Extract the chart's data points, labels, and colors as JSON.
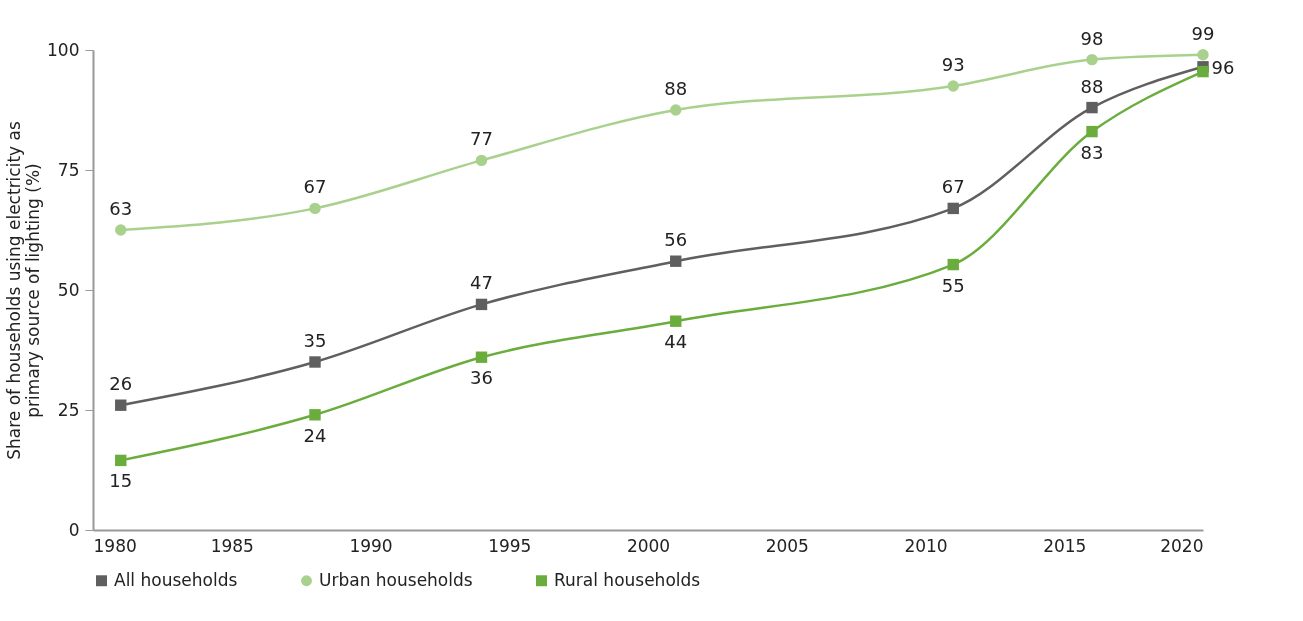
{
  "chart_data": {
    "type": "line",
    "ylabel": "Share of households using electricity as primary source of lighting (%)",
    "x": [
      1981,
      1988,
      1994,
      2001,
      2011,
      2016,
      2020
    ],
    "series": [
      {
        "name": "All households",
        "color": "#5f5f5f",
        "marker": "square",
        "values": [
          26,
          35,
          47,
          56,
          67,
          88,
          96.5
        ],
        "value_labels": [
          "26",
          "35",
          "47",
          "56",
          "67",
          "88",
          "96"
        ]
      },
      {
        "name": "Urban households",
        "color": "#a9d18e",
        "marker": "circle",
        "values": [
          62.5,
          67,
          77,
          87.5,
          92.5,
          98,
          99
        ],
        "value_labels": [
          "63",
          "67",
          "77",
          "88",
          "93",
          "98",
          "99"
        ]
      },
      {
        "name": "Rural households",
        "color": "#6aad3d",
        "marker": "square",
        "values": [
          14.5,
          24,
          36,
          43.5,
          55.3,
          83,
          95.5
        ],
        "value_labels": [
          "15",
          "24",
          "36",
          "44",
          "55",
          "83",
          null
        ]
      }
    ],
    "xlim": [
      1980,
      2020
    ],
    "xticks": [
      1980,
      1985,
      1990,
      1995,
      2000,
      2005,
      2010,
      2015,
      2020
    ],
    "ylim": [
      0,
      100
    ],
    "yticks": [
      0,
      25,
      50,
      75,
      100
    ],
    "grid": false,
    "legend": "bottom",
    "line_style": "solid"
  }
}
